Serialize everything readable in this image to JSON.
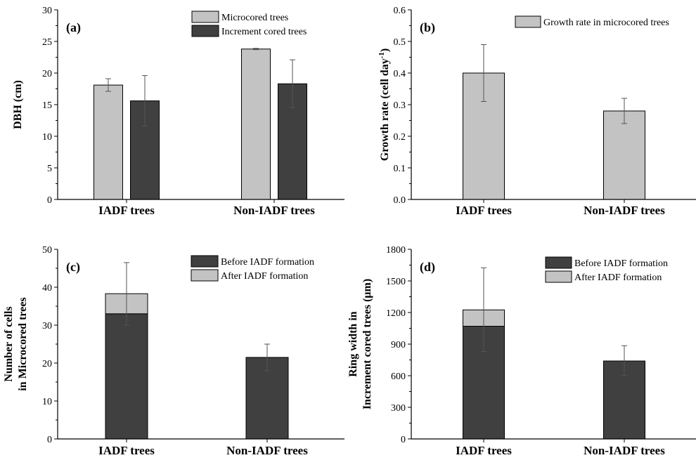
{
  "colors": {
    "light": "#c3c3c3",
    "dark": "#404040",
    "axis": "#000000",
    "error": "#555555"
  },
  "chart_data": [
    {
      "panel": "(a)",
      "type": "bar",
      "ylabel": "DBH (cm)",
      "ylim": [
        0,
        30
      ],
      "yticks": [
        "0",
        "5",
        "10",
        "15",
        "20",
        "25",
        "30"
      ],
      "categories": [
        "IADF trees",
        "Non-IADF trees"
      ],
      "series": [
        {
          "name": "Microcored trees",
          "color": "light",
          "values": [
            18.1,
            23.8
          ],
          "errors": [
            1.0,
            0.1
          ]
        },
        {
          "name": "Increment cored trees",
          "color": "dark",
          "values": [
            15.6,
            18.3
          ],
          "errors": [
            4.0,
            3.8
          ]
        }
      ],
      "legend": "top-right"
    },
    {
      "panel": "(b)",
      "type": "bar",
      "ylabel": "Growth rate (cell day",
      "ylabel_sup": "-1",
      "ylabel_end": ")",
      "ylim": [
        0,
        0.6
      ],
      "yticks": [
        "0.0",
        "0.1",
        "0.2",
        "0.3",
        "0.4",
        "0.5",
        "0.6"
      ],
      "categories": [
        "IADF trees",
        "Non-IADF trees"
      ],
      "series": [
        {
          "name": "Growth rate in microcored trees",
          "color": "light",
          "values": [
            0.4,
            0.28
          ],
          "errors": [
            0.09,
            0.04
          ]
        }
      ],
      "legend": "top-right"
    },
    {
      "panel": "(c)",
      "type": "stacked-bar",
      "ylabel_lines": [
        "Number of cells",
        "in Microcored trees"
      ],
      "ylim": [
        0,
        50
      ],
      "yticks": [
        "0",
        "10",
        "20",
        "30",
        "40",
        "50"
      ],
      "categories": [
        "IADF trees",
        "Non-IADF trees"
      ],
      "series": [
        {
          "name": "Before IADF formation",
          "color": "dark",
          "values": [
            33.0,
            21.5
          ]
        },
        {
          "name": "After IADF formation",
          "color": "light",
          "values": [
            5.3,
            0
          ]
        }
      ],
      "errors": [
        {
          "low": 30.0,
          "high": 46.5
        },
        {
          "low": 18.0,
          "high": 25.0
        }
      ],
      "legend": "top-right"
    },
    {
      "panel": "(d)",
      "type": "stacked-bar",
      "ylabel_lines": [
        "Ring width in",
        "Increment cored trees (μm)"
      ],
      "ylim": [
        0,
        1800
      ],
      "yticks": [
        "0",
        "300",
        "600",
        "900",
        "1200",
        "1500",
        "1800"
      ],
      "categories": [
        "IADF trees",
        "Non-IADF trees"
      ],
      "series": [
        {
          "name": "Before IADF formation",
          "color": "dark",
          "values": [
            1070,
            740
          ]
        },
        {
          "name": "After IADF formation",
          "color": "light",
          "values": [
            155,
            0
          ]
        }
      ],
      "errors": [
        {
          "low": 830,
          "high": 1625
        },
        {
          "low": 600,
          "high": 885
        }
      ],
      "legend": "top-right"
    }
  ]
}
